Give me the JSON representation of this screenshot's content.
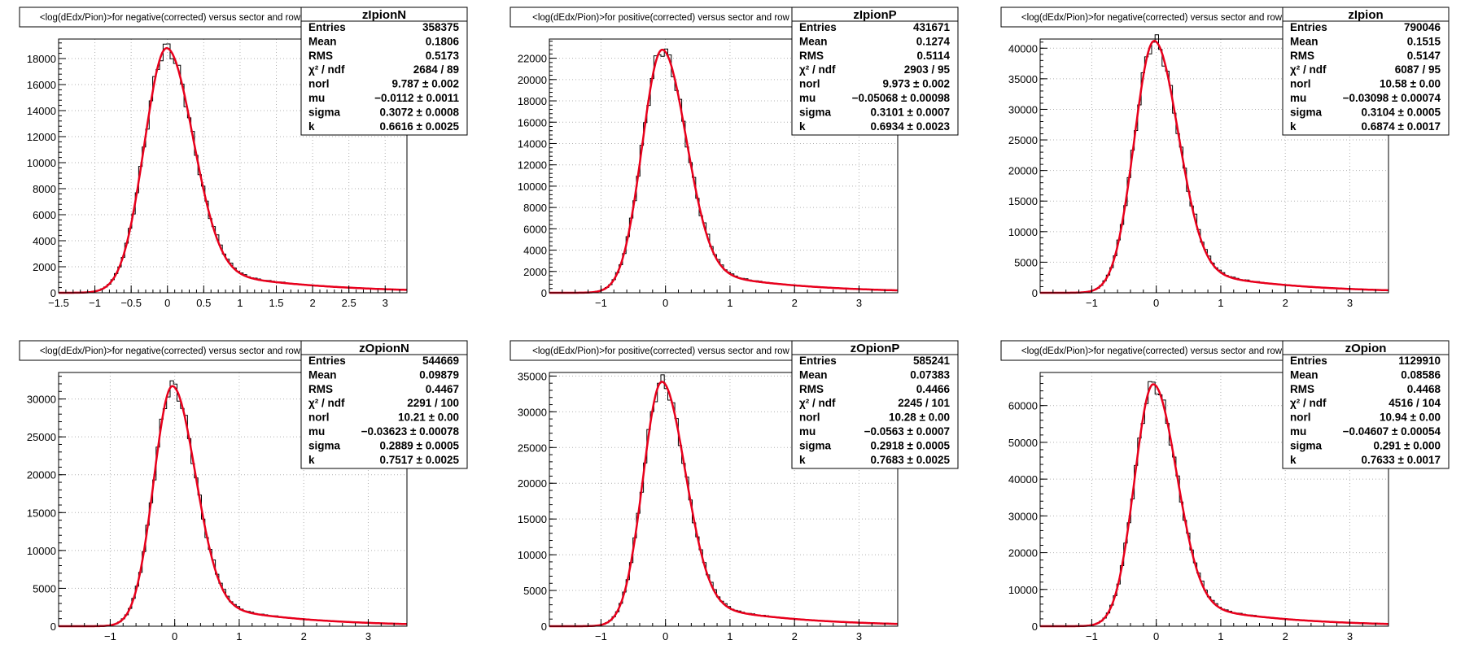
{
  "page": {
    "background": "#ffffff",
    "histogram_color": "#000000",
    "fit_color": "#e8001c",
    "grid_color": "#b0b0b0"
  },
  "chart_data": [
    {
      "type": "line",
      "name": "zIpionN",
      "title": "<log(dEdx/Pion)>for negative(corrected) versus sector and row",
      "xlim": [
        -1.5,
        3.3
      ],
      "ylim": [
        0,
        19500
      ],
      "xticks": [
        -1.5,
        -1,
        -0.5,
        0,
        0.5,
        1,
        1.5,
        2,
        2.5,
        3
      ],
      "xtick_labels": [
        "−1.5",
        "−1",
        "−0.5",
        "0",
        "0.5",
        "1",
        "1.5",
        "2",
        "2.5",
        "3"
      ],
      "yticks": [
        0,
        2000,
        4000,
        6000,
        8000,
        10000,
        12000,
        14000,
        16000,
        18000
      ],
      "ytick_labels": [
        "0",
        "2000",
        "4000",
        "6000",
        "8000",
        "10000",
        "12000",
        "14000",
        "16000",
        "18000"
      ],
      "grid": true,
      "fit": {
        "norl": 9.787,
        "mu": -0.0112,
        "sigma": 0.3072,
        "k": 0.6616,
        "peak": 18800
      },
      "stats": [
        {
          "label": "Entries",
          "value": "358375"
        },
        {
          "label": "Mean",
          "value": "0.1806"
        },
        {
          "label": "RMS",
          "value": "0.5173"
        },
        {
          "label": "χ² / ndf",
          "value": "2684 / 89"
        },
        {
          "label": "norl",
          "value": "9.787 ± 0.002"
        },
        {
          "label": "mu",
          "value": "−0.0112 ± 0.0011"
        },
        {
          "label": "sigma",
          "value": "0.3072 ± 0.0008"
        },
        {
          "label": "k",
          "value": "0.6616 ± 0.0025"
        }
      ]
    },
    {
      "type": "line",
      "name": "zIpionP",
      "title": "<log(dEdx/Pion)>for positive(corrected) versus sector and row",
      "xlim": [
        -1.8,
        3.6
      ],
      "ylim": [
        0,
        23800
      ],
      "xticks": [
        -1,
        0,
        1,
        2,
        3
      ],
      "xtick_labels": [
        "−1",
        "0",
        "1",
        "2",
        "3"
      ],
      "yticks": [
        0,
        2000,
        4000,
        6000,
        8000,
        10000,
        12000,
        14000,
        16000,
        18000,
        20000,
        22000
      ],
      "ytick_labels": [
        "0",
        "2000",
        "4000",
        "6000",
        "8000",
        "10000",
        "12000",
        "14000",
        "16000",
        "18000",
        "20000",
        "22000"
      ],
      "grid": true,
      "fit": {
        "norl": 9.973,
        "mu": -0.05068,
        "sigma": 0.3101,
        "k": 0.6934,
        "peak": 22800
      },
      "stats": [
        {
          "label": "Entries",
          "value": "431671"
        },
        {
          "label": "Mean",
          "value": "0.1274"
        },
        {
          "label": "RMS",
          "value": "0.5114"
        },
        {
          "label": "χ² / ndf",
          "value": "2903 / 95"
        },
        {
          "label": "norl",
          "value": "9.973 ± 0.002"
        },
        {
          "label": "mu",
          "value": "−0.05068 ± 0.00098"
        },
        {
          "label": "sigma",
          "value": "0.3101 ± 0.0007"
        },
        {
          "label": "k",
          "value": "0.6934 ± 0.0023"
        }
      ]
    },
    {
      "type": "line",
      "name": "zIpion",
      "title": "<log(dEdx/Pion)>for negative(corrected) versus sector and row",
      "xlim": [
        -1.8,
        3.6
      ],
      "ylim": [
        0,
        41500
      ],
      "xticks": [
        -1,
        0,
        1,
        2,
        3
      ],
      "xtick_labels": [
        "−1",
        "0",
        "1",
        "2",
        "3"
      ],
      "yticks": [
        0,
        5000,
        10000,
        15000,
        20000,
        25000,
        30000,
        35000,
        40000
      ],
      "ytick_labels": [
        "0",
        "5000",
        "10000",
        "15000",
        "20000",
        "25000",
        "30000",
        "35000",
        "40000"
      ],
      "grid": true,
      "fit": {
        "norl": 10.58,
        "mu": -0.03098,
        "sigma": 0.3104,
        "k": 0.6874,
        "peak": 41200
      },
      "stats": [
        {
          "label": "Entries",
          "value": "790046"
        },
        {
          "label": "Mean",
          "value": "0.1515"
        },
        {
          "label": "RMS",
          "value": "0.5147"
        },
        {
          "label": "χ² / ndf",
          "value": "6087 / 95"
        },
        {
          "label": "norl",
          "value": "10.58 ± 0.00"
        },
        {
          "label": "mu",
          "value": "−0.03098 ± 0.00074"
        },
        {
          "label": "sigma",
          "value": "0.3104 ± 0.0005"
        },
        {
          "label": "k",
          "value": "0.6874 ± 0.0017"
        }
      ]
    },
    {
      "type": "line",
      "name": "zOpionN",
      "title": "<log(dEdx/Pion)>for negative(corrected) versus sector and row",
      "xlim": [
        -1.8,
        3.6
      ],
      "ylim": [
        0,
        33500
      ],
      "xticks": [
        -1,
        0,
        1,
        2,
        3
      ],
      "xtick_labels": [
        "−1",
        "0",
        "1",
        "2",
        "3"
      ],
      "yticks": [
        0,
        5000,
        10000,
        15000,
        20000,
        25000,
        30000
      ],
      "ytick_labels": [
        "0",
        "5000",
        "10000",
        "15000",
        "20000",
        "25000",
        "30000"
      ],
      "grid": true,
      "fit": {
        "norl": 10.21,
        "mu": -0.03623,
        "sigma": 0.2889,
        "k": 0.7517,
        "peak": 31700
      },
      "stats": [
        {
          "label": "Entries",
          "value": "544669"
        },
        {
          "label": "Mean",
          "value": "0.09879"
        },
        {
          "label": "RMS",
          "value": "0.4467"
        },
        {
          "label": "χ² / ndf",
          "value": "2291 / 100"
        },
        {
          "label": "norl",
          "value": "10.21 ± 0.00"
        },
        {
          "label": "mu",
          "value": "−0.03623 ± 0.00078"
        },
        {
          "label": "sigma",
          "value": "0.2889 ± 0.0005"
        },
        {
          "label": "k",
          "value": "0.7517 ± 0.0025"
        }
      ]
    },
    {
      "type": "line",
      "name": "zOpionP",
      "title": "<log(dEdx/Pion)>for positive(corrected) versus sector and row",
      "xlim": [
        -1.8,
        3.6
      ],
      "ylim": [
        0,
        35500
      ],
      "xticks": [
        -1,
        0,
        1,
        2,
        3
      ],
      "xtick_labels": [
        "−1",
        "0",
        "1",
        "2",
        "3"
      ],
      "yticks": [
        0,
        5000,
        10000,
        15000,
        20000,
        25000,
        30000,
        35000
      ],
      "ytick_labels": [
        "0",
        "5000",
        "10000",
        "15000",
        "20000",
        "25000",
        "30000",
        "35000"
      ],
      "grid": true,
      "fit": {
        "norl": 10.28,
        "mu": -0.0563,
        "sigma": 0.2918,
        "k": 0.7683,
        "peak": 34200
      },
      "stats": [
        {
          "label": "Entries",
          "value": "585241"
        },
        {
          "label": "Mean",
          "value": "0.07383"
        },
        {
          "label": "RMS",
          "value": "0.4466"
        },
        {
          "label": "χ² / ndf",
          "value": "2245 / 101"
        },
        {
          "label": "norl",
          "value": "10.28 ± 0.00"
        },
        {
          "label": "mu",
          "value": "−0.0563 ± 0.0007"
        },
        {
          "label": "sigma",
          "value": "0.2918 ± 0.0005"
        },
        {
          "label": "k",
          "value": "0.7683 ± 0.0025"
        }
      ]
    },
    {
      "type": "line",
      "name": "zOpion",
      "title": "<log(dEdx/Pion)>for negative(corrected) versus sector and row",
      "xlim": [
        -1.8,
        3.6
      ],
      "ylim": [
        0,
        69000
      ],
      "xticks": [
        -1,
        0,
        1,
        2,
        3
      ],
      "xtick_labels": [
        "−1",
        "0",
        "1",
        "2",
        "3"
      ],
      "yticks": [
        0,
        10000,
        20000,
        30000,
        40000,
        50000,
        60000
      ],
      "ytick_labels": [
        "0",
        "10000",
        "20000",
        "30000",
        "40000",
        "50000",
        "60000"
      ],
      "grid": true,
      "fit": {
        "norl": 10.94,
        "mu": -0.04607,
        "sigma": 0.291,
        "k": 0.7633,
        "peak": 65800
      },
      "stats": [
        {
          "label": "Entries",
          "value": "1129910"
        },
        {
          "label": "Mean",
          "value": "0.08586"
        },
        {
          "label": "RMS",
          "value": "0.4468"
        },
        {
          "label": "χ² / ndf",
          "value": "4516 / 104"
        },
        {
          "label": "norl",
          "value": "10.94 ± 0.00"
        },
        {
          "label": "mu",
          "value": "−0.04607 ± 0.00054"
        },
        {
          "label": "sigma",
          "value": "0.291 ± 0.000"
        },
        {
          "label": "k",
          "value": "0.7633 ± 0.0017"
        }
      ]
    }
  ]
}
